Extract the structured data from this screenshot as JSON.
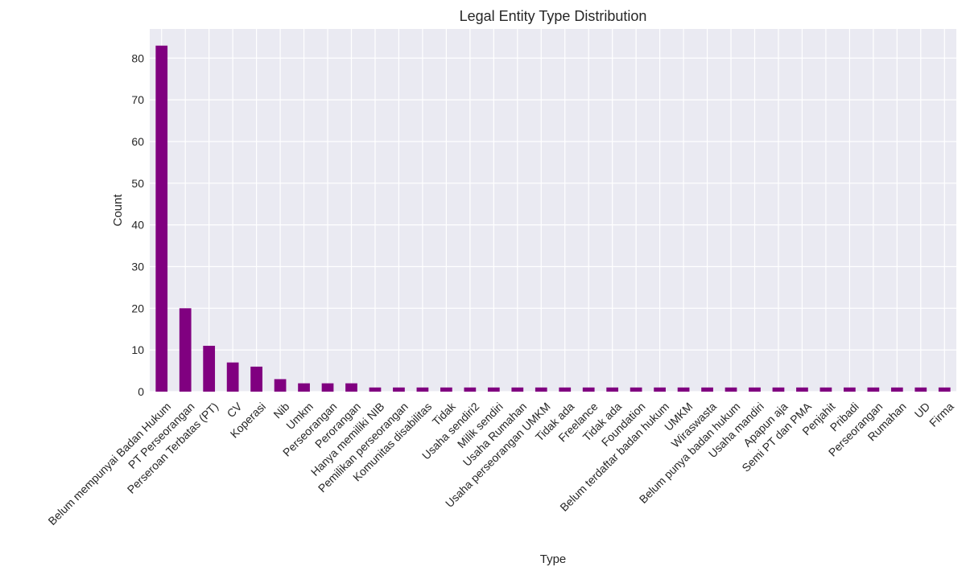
{
  "chart_data": {
    "type": "bar",
    "title": "Legal Entity Type Distribution",
    "xlabel": "Type",
    "ylabel": "Count",
    "ylim": [
      0,
      87
    ],
    "yticks": [
      0,
      10,
      20,
      30,
      40,
      50,
      60,
      70,
      80
    ],
    "grid": true,
    "legend": "none",
    "colors": {
      "bar": "#800080",
      "plot_background": "#eaeaf2",
      "grid": "#ffffff",
      "text": "#262626"
    },
    "categories": [
      "Belum mempunyai Badan Hukum",
      "PT Perseorangan",
      "Perseroan Terbatas (PT)",
      "CV",
      "Koperasi",
      "Nib",
      "Umkm",
      "Perseorangan",
      "Perorangan",
      "Hanya memiliki NIB",
      "Pemilikan perseorangan",
      "Komunitas disabilitas",
      "Tidak",
      "Usaha sendiri2",
      "Milik sendiri",
      "Usaha Rumahan",
      "Usaha perseorangan UMKM",
      "Tidak ada",
      "Freelance",
      "Tidak ada",
      "Foundation",
      "Belum terdaftar badan hukum",
      "UMKM",
      "Wiraswasta",
      "Belum punya badan hukum",
      "Usaha mandiri",
      "Apapun aja",
      "Semi PT dan PMA",
      "Penjahit",
      "Pribadi",
      "Perseorangan",
      "Rumahan",
      "UD",
      "Firma"
    ],
    "values": [
      83,
      20,
      11,
      7,
      6,
      3,
      2,
      2,
      2,
      1,
      1,
      1,
      1,
      1,
      1,
      1,
      1,
      1,
      1,
      1,
      1,
      1,
      1,
      1,
      1,
      1,
      1,
      1,
      1,
      1,
      1,
      1,
      1,
      1
    ]
  }
}
